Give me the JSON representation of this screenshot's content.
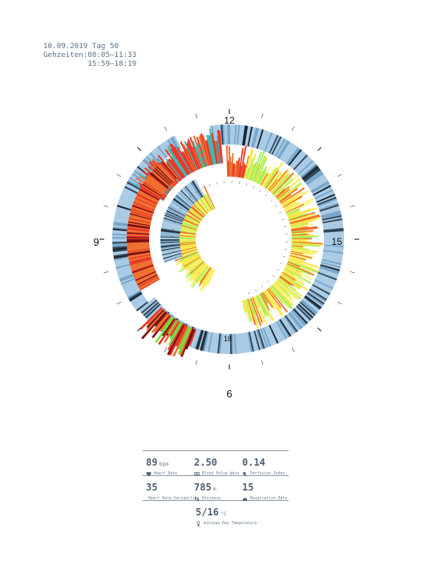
{
  "header": {
    "date_line": "10.09.2019 Tag 50",
    "times_label": "Gehzeiten:",
    "times": [
      "08:05–11:33",
      "15:59–18:19"
    ]
  },
  "chart_data": {
    "type": "radial-heatmap",
    "clock_labels": [
      "12",
      "15",
      "18",
      "9",
      "6"
    ],
    "colors": {
      "blue_light": "#a9cbe6",
      "blue_mid": "#7aa6c8",
      "blue_dark": "#2f4656",
      "black_blue": "#1a2630",
      "teal": "#43b8b0",
      "red": "#e8392a",
      "dark_red": "#7a1010",
      "orange": "#f07030",
      "yellow": "#f8e848",
      "light_yellow": "#fff27a",
      "lime": "#a8f060",
      "green": "#70e040"
    }
  },
  "stats": {
    "heart_rate": {
      "value": "89",
      "unit": "bpm",
      "label": "Heart Rate",
      "icon": "heart-icon"
    },
    "blood_pulse_wave": {
      "value": "2.50",
      "unit": "",
      "label": "Blood Pulse Wave",
      "icon": "pulse-wave-icon"
    },
    "perfusion_index": {
      "value": "0.14",
      "unit": "",
      "label": "Perfusion Index",
      "icon": "perfusion-icon"
    },
    "hrv": {
      "value": "35",
      "unit": "",
      "label": "Heart Rate Variability",
      "icon": "hrv-icon"
    },
    "distance": {
      "value": "785",
      "unit": "m",
      "label": "Distance",
      "icon": "footsteps-icon"
    },
    "respiration": {
      "value": "15",
      "unit": "",
      "label": "Respiration Rate",
      "icon": "lungs-icon"
    },
    "temperature": {
      "value": "5/16",
      "unit": "°C",
      "label": "min/max Day Temperature",
      "icon": "thermometer-icon"
    }
  }
}
